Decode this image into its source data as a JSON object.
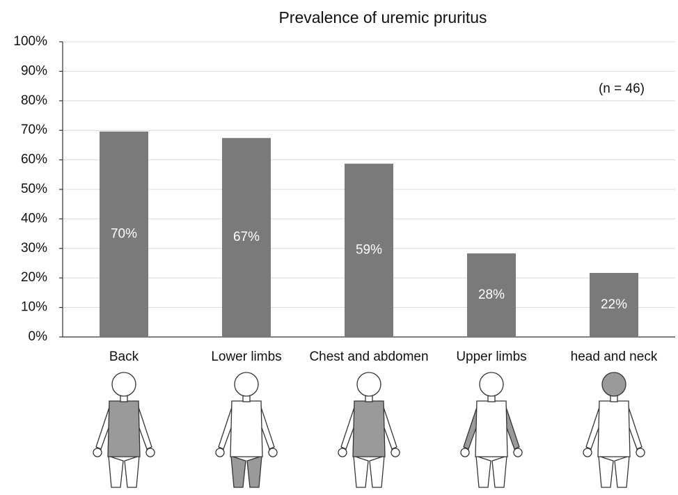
{
  "chart_data": {
    "type": "bar",
    "title": "Prevalence of uremic pruritus",
    "annotation": "(n = 46)",
    "categories": [
      "Back",
      "Lower limbs",
      "Chest and abdomen",
      "Upper limbs",
      "head and neck"
    ],
    "values": [
      69.6,
      67.4,
      58.7,
      28.3,
      21.7
    ],
    "value_labels": [
      "70%",
      "67%",
      "59%",
      "28%",
      "22%"
    ],
    "color": "#7a7a7a",
    "ylim": [
      0,
      100
    ],
    "yticks": [
      {
        "value": 0,
        "label": "0%"
      },
      {
        "value": 10,
        "label": "10%"
      },
      {
        "value": 20,
        "label": "20%"
      },
      {
        "value": 30,
        "label": "30%"
      },
      {
        "value": 40,
        "label": "40%"
      },
      {
        "value": 50,
        "label": "50%"
      },
      {
        "value": 60,
        "label": "60%"
      },
      {
        "value": 70,
        "label": "70%"
      },
      {
        "value": 80,
        "label": "80%"
      },
      {
        "value": 90,
        "label": "90%"
      },
      {
        "value": 100,
        "label": "100%"
      }
    ],
    "grid": true
  }
}
